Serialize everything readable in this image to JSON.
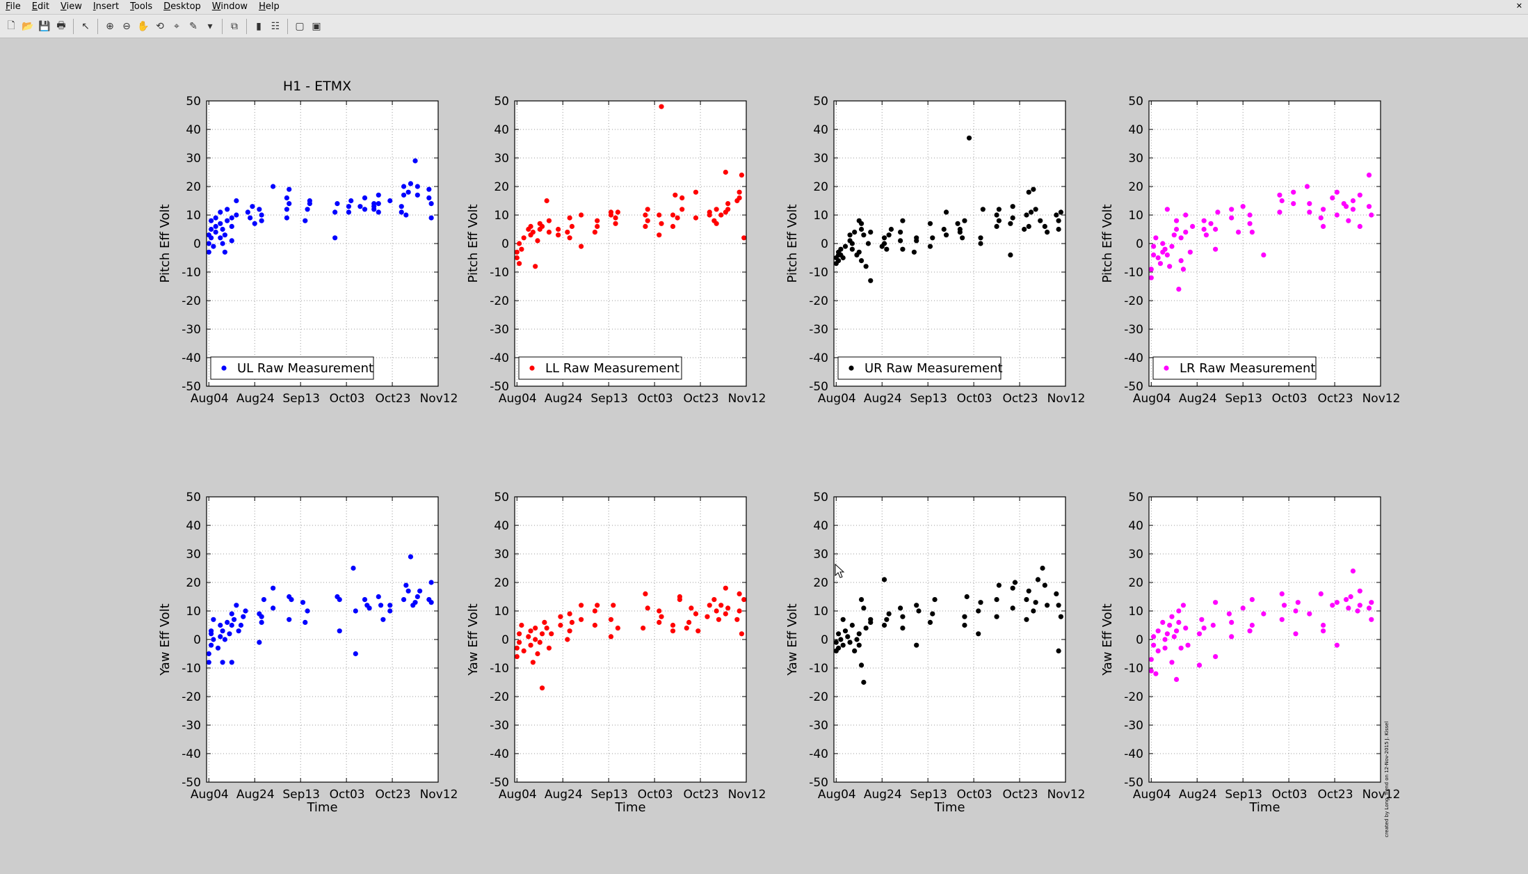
{
  "window": {
    "menu": [
      "File",
      "Edit",
      "View",
      "Insert",
      "Tools",
      "Desktop",
      "Window",
      "Help"
    ],
    "close_symbol": "✕",
    "toolbar": [
      {
        "name": "new-figure-icon",
        "glyph": "🗋"
      },
      {
        "name": "open-file-icon",
        "glyph": "📂"
      },
      {
        "name": "save-icon",
        "glyph": "💾"
      },
      {
        "name": "print-icon",
        "glyph": "🖶"
      },
      {
        "sep": true
      },
      {
        "name": "edit-plot-arrow-icon",
        "glyph": "↖"
      },
      {
        "sep": true
      },
      {
        "name": "zoom-in-icon",
        "glyph": "⊕"
      },
      {
        "name": "zoom-out-icon",
        "glyph": "⊖"
      },
      {
        "name": "pan-hand-icon",
        "glyph": "✋"
      },
      {
        "name": "rotate-3d-icon",
        "glyph": "⟲"
      },
      {
        "name": "data-cursor-icon",
        "glyph": "⌖"
      },
      {
        "name": "brush-icon",
        "glyph": "✎"
      },
      {
        "name": "brush-dropdown-icon",
        "glyph": "▾"
      },
      {
        "sep": true
      },
      {
        "name": "link-plot-icon",
        "glyph": "⧉"
      },
      {
        "sep": true
      },
      {
        "name": "insert-colorbar-icon",
        "glyph": "▮"
      },
      {
        "name": "insert-legend-icon",
        "glyph": "☷"
      },
      {
        "sep": true
      },
      {
        "name": "hide-plot-tools-icon",
        "glyph": "▢"
      },
      {
        "name": "show-plot-tools-icon",
        "glyph": "▣"
      }
    ]
  },
  "figure": {
    "title": "H1 - ETMX",
    "credit": "created by Long_Trend on 12-Nov-2015 J. Kissel",
    "x_ticks": [
      "Aug04",
      "Aug24",
      "Sep13",
      "Oct03",
      "Oct23",
      "Nov12"
    ],
    "y_ticks": [
      "50",
      "40",
      "30",
      "20",
      "10",
      "0",
      "-10",
      "-20",
      "-30",
      "-40",
      "-50"
    ],
    "x_label": "Time",
    "y_label_pitch": "Pitch Eff Volt",
    "y_label_yaw": "Yaw Eff Volt"
  },
  "chart_data": [
    {
      "type": "scatter",
      "row": "pitch",
      "ylabel": "Pitch Eff Volt",
      "color": "#0000ff",
      "legend": "UL Raw Measurement",
      "ylim": [
        -50,
        50
      ],
      "xlim": [
        -1,
        100
      ],
      "x": [
        0,
        0,
        0,
        1,
        1,
        1,
        2,
        3,
        3,
        3,
        5,
        5,
        5,
        6,
        6,
        7,
        7,
        8,
        8,
        10,
        10,
        10,
        12,
        12,
        17,
        18,
        19,
        20,
        22,
        23,
        23,
        28,
        34,
        34,
        34,
        35,
        35,
        42,
        43,
        44,
        44,
        55,
        55,
        56,
        61,
        61,
        62,
        66,
        68,
        68,
        72,
        72,
        72,
        74,
        74,
        74,
        79,
        84,
        84,
        85,
        85,
        86,
        87,
        88,
        90,
        91,
        91,
        96,
        96,
        97,
        97
      ],
      "y": [
        -3,
        0,
        3,
        5,
        8,
        2,
        -1,
        4,
        6,
        9,
        2,
        7,
        11,
        0,
        5,
        -3,
        3,
        8,
        12,
        9,
        1,
        6,
        15,
        10,
        11,
        9,
        13,
        7,
        12,
        10,
        8,
        20,
        16,
        12,
        9,
        19,
        14,
        8,
        12,
        15,
        14,
        11,
        2,
        14,
        13,
        11,
        15,
        13,
        12,
        16,
        14,
        13,
        12,
        14,
        11,
        17,
        15,
        13,
        11,
        20,
        17,
        10,
        18,
        21,
        29,
        20,
        17,
        16,
        19,
        9,
        14
      ]
    },
    {
      "type": "scatter",
      "row": "pitch",
      "ylabel": "Pitch Eff Volt",
      "color": "#ff0000",
      "legend": "LL Raw Measurement",
      "ylim": [
        -50,
        50
      ],
      "xlim": [
        -1,
        100
      ],
      "x": [
        0,
        0,
        1,
        1,
        2,
        3,
        5,
        6,
        6,
        7,
        8,
        9,
        10,
        10,
        11,
        13,
        14,
        14,
        18,
        18,
        22,
        23,
        23,
        24,
        28,
        28,
        34,
        35,
        35,
        41,
        41,
        43,
        43,
        44,
        56,
        56,
        57,
        57,
        62,
        62,
        63,
        63,
        68,
        68,
        69,
        70,
        72,
        72,
        78,
        78,
        84,
        84,
        86,
        87,
        87,
        89,
        91,
        91,
        92,
        92,
        96,
        97,
        97,
        98,
        99
      ],
      "y": [
        -5,
        -3,
        -7,
        0,
        -2,
        2,
        5,
        3,
        6,
        4,
        -8,
        1,
        7,
        5,
        6,
        15,
        8,
        4,
        3,
        5,
        4,
        9,
        2,
        6,
        -1,
        10,
        4,
        8,
        6,
        11,
        10,
        9,
        7,
        11,
        10,
        6,
        12,
        8,
        10,
        3,
        7,
        48,
        6,
        10,
        17,
        9,
        12,
        16,
        9,
        18,
        11,
        10,
        8,
        7,
        12,
        10,
        25,
        11,
        14,
        12,
        15,
        18,
        16,
        24,
        2
      ]
    },
    {
      "type": "scatter",
      "row": "pitch",
      "ylabel": "Pitch Eff Volt",
      "color": "#000000",
      "legend": "UR Raw Measurement",
      "ylim": [
        -50,
        50
      ],
      "xlim": [
        -1,
        100
      ],
      "x": [
        0,
        0,
        1,
        1,
        1,
        2,
        2,
        3,
        4,
        6,
        6,
        7,
        7,
        8,
        9,
        10,
        10,
        11,
        11,
        11,
        12,
        13,
        14,
        15,
        15,
        20,
        21,
        21,
        22,
        23,
        24,
        28,
        28,
        29,
        29,
        34,
        35,
        35,
        41,
        41,
        42,
        47,
        48,
        48,
        53,
        54,
        54,
        55,
        56,
        58,
        63,
        63,
        64,
        70,
        70,
        71,
        71,
        76,
        76,
        77,
        77,
        82,
        83,
        84,
        84,
        85,
        86,
        87,
        89,
        91,
        92,
        96,
        97,
        97,
        98
      ],
      "y": [
        -7,
        -5,
        -3,
        -6,
        -4,
        -4,
        -2,
        -5,
        -1,
        1,
        3,
        -2,
        0,
        4,
        -4,
        -3,
        8,
        7,
        5,
        -6,
        3,
        -8,
        0,
        4,
        -13,
        -1,
        0,
        2,
        -2,
        3,
        5,
        1,
        4,
        -2,
        8,
        -3,
        1,
        2,
        7,
        -1,
        2,
        5,
        3,
        11,
        7,
        4,
        5,
        2,
        8,
        37,
        2,
        0,
        12,
        6,
        10,
        12,
        8,
        7,
        -4,
        9,
        13,
        5,
        10,
        6,
        18,
        11,
        19,
        12,
        8,
        6,
        4,
        10,
        8,
        5,
        11
      ]
    },
    {
      "type": "scatter",
      "row": "pitch",
      "ylabel": "Pitch Eff Volt",
      "color": "#ff00ff",
      "legend": "LR Raw Measurement",
      "ylim": [
        -50,
        50
      ],
      "xlim": [
        -1,
        100
      ],
      "x": [
        0,
        0,
        1,
        1,
        2,
        3,
        4,
        5,
        5,
        6,
        7,
        7,
        8,
        9,
        10,
        11,
        11,
        12,
        13,
        13,
        14,
        15,
        15,
        17,
        18,
        23,
        23,
        24,
        26,
        28,
        28,
        29,
        35,
        35,
        38,
        40,
        43,
        43,
        44,
        49,
        56,
        56,
        57,
        62,
        62,
        68,
        69,
        69,
        74,
        75,
        75,
        79,
        81,
        81,
        84,
        85,
        86,
        88,
        88,
        91,
        91,
        95,
        95,
        96
      ],
      "y": [
        -12,
        -9,
        -4,
        -1,
        2,
        -5,
        -7,
        -3,
        0,
        -2,
        -4,
        12,
        -8,
        -1,
        3,
        5,
        8,
        -16,
        -6,
        2,
        -9,
        4,
        10,
        -3,
        6,
        5,
        8,
        3,
        7,
        5,
        -2,
        11,
        12,
        9,
        4,
        13,
        10,
        7,
        4,
        -4,
        17,
        11,
        15,
        14,
        18,
        20,
        14,
        11,
        9,
        6,
        12,
        16,
        18,
        10,
        14,
        13,
        8,
        12,
        15,
        6,
        17,
        13,
        24,
        10
      ]
    },
    {
      "type": "scatter",
      "row": "yaw",
      "ylabel": "Yaw Eff Volt",
      "color": "#0000ff",
      "ylim": [
        -50,
        50
      ],
      "xlim": [
        -1,
        100
      ],
      "x": [
        0,
        0,
        1,
        1,
        1,
        2,
        2,
        4,
        5,
        5,
        6,
        6,
        7,
        8,
        9,
        10,
        10,
        10,
        11,
        12,
        13,
        14,
        15,
        16,
        22,
        22,
        23,
        23,
        24,
        28,
        28,
        35,
        35,
        36,
        41,
        42,
        43,
        56,
        57,
        57,
        63,
        64,
        64,
        68,
        69,
        70,
        74,
        75,
        76,
        79,
        79,
        85,
        86,
        87,
        88,
        89,
        90,
        91,
        92,
        96,
        97,
        97
      ],
      "y": [
        -8,
        -5,
        2,
        3,
        -2,
        7,
        0,
        -3,
        1,
        5,
        3,
        -8,
        0,
        6,
        2,
        5,
        -8,
        9,
        7,
        12,
        3,
        5,
        8,
        10,
        -1,
        9,
        8,
        6,
        14,
        18,
        11,
        15,
        7,
        14,
        13,
        6,
        10,
        15,
        3,
        14,
        25,
        10,
        -5,
        14,
        12,
        11,
        15,
        12,
        7,
        10,
        12,
        14,
        19,
        17,
        29,
        12,
        13,
        15,
        17,
        14,
        20,
        13
      ]
    },
    {
      "type": "scatter",
      "row": "yaw",
      "ylabel": "Yaw Eff Volt",
      "color": "#ff0000",
      "ylim": [
        -50,
        50
      ],
      "xlim": [
        -1,
        100
      ],
      "x": [
        0,
        0,
        1,
        1,
        2,
        3,
        5,
        6,
        6,
        7,
        8,
        8,
        9,
        10,
        11,
        11,
        12,
        13,
        14,
        15,
        19,
        19,
        22,
        23,
        23,
        24,
        28,
        28,
        34,
        34,
        35,
        41,
        41,
        42,
        44,
        55,
        56,
        57,
        62,
        62,
        63,
        68,
        68,
        71,
        71,
        74,
        75,
        76,
        78,
        79,
        83,
        84,
        86,
        87,
        88,
        89,
        91,
        91,
        92,
        96,
        97,
        97,
        98,
        99
      ],
      "y": [
        -6,
        -3,
        -1,
        2,
        5,
        -4,
        1,
        -2,
        3,
        -8,
        0,
        4,
        -5,
        -1,
        2,
        -17,
        6,
        4,
        -3,
        2,
        5,
        8,
        0,
        3,
        9,
        6,
        12,
        7,
        5,
        10,
        12,
        1,
        7,
        12,
        4,
        4,
        16,
        11,
        10,
        6,
        8,
        3,
        5,
        15,
        14,
        4,
        6,
        11,
        9,
        3,
        8,
        12,
        14,
        10,
        7,
        12,
        9,
        18,
        11,
        7,
        16,
        10,
        2,
        14
      ]
    },
    {
      "type": "scatter",
      "row": "yaw",
      "ylabel": "Yaw Eff Volt",
      "color": "#000000",
      "ylim": [
        -50,
        50
      ],
      "xlim": [
        -1,
        100
      ],
      "x": [
        0,
        0,
        1,
        1,
        2,
        3,
        3,
        4,
        5,
        6,
        7,
        8,
        9,
        10,
        10,
        11,
        11,
        12,
        12,
        13,
        15,
        15,
        21,
        21,
        22,
        23,
        28,
        29,
        29,
        35,
        35,
        36,
        41,
        42,
        43,
        56,
        56,
        57,
        62,
        62,
        63,
        70,
        70,
        71,
        77,
        77,
        78,
        83,
        83,
        84,
        86,
        87,
        88,
        90,
        91,
        92,
        96,
        97,
        97,
        98
      ],
      "y": [
        -4,
        -1,
        2,
        -3,
        0,
        -2,
        7,
        3,
        1,
        -1,
        5,
        -4,
        0,
        -2,
        2,
        -9,
        14,
        11,
        -15,
        4,
        6,
        7,
        21,
        5,
        7,
        9,
        11,
        4,
        8,
        12,
        -2,
        10,
        6,
        9,
        14,
        8,
        5,
        15,
        10,
        2,
        13,
        8,
        14,
        19,
        11,
        18,
        20,
        7,
        14,
        17,
        10,
        13,
        21,
        25,
        19,
        12,
        16,
        12,
        -4,
        8
      ]
    },
    {
      "type": "scatter",
      "row": "yaw",
      "ylabel": "Yaw Eff Volt",
      "color": "#ff00ff",
      "ylim": [
        -50,
        50
      ],
      "xlim": [
        -1,
        100
      ],
      "x": [
        0,
        0,
        1,
        1,
        2,
        3,
        3,
        5,
        6,
        6,
        7,
        8,
        9,
        9,
        10,
        11,
        11,
        12,
        12,
        13,
        14,
        15,
        16,
        21,
        21,
        22,
        23,
        27,
        28,
        28,
        34,
        35,
        35,
        40,
        43,
        44,
        44,
        49,
        57,
        57,
        58,
        63,
        63,
        64,
        69,
        74,
        75,
        75,
        79,
        81,
        81,
        85,
        86,
        87,
        88,
        90,
        91,
        91,
        95,
        96,
        96
      ],
      "y": [
        -11,
        -7,
        -2,
        1,
        -12,
        3,
        -4,
        6,
        0,
        -3,
        2,
        5,
        -8,
        8,
        1,
        -14,
        3,
        10,
        6,
        -3,
        12,
        4,
        -2,
        -9,
        2,
        7,
        4,
        5,
        -6,
        13,
        9,
        1,
        6,
        11,
        3,
        14,
        5,
        9,
        7,
        16,
        12,
        10,
        2,
        13,
        9,
        16,
        3,
        5,
        12,
        13,
        -2,
        14,
        11,
        15,
        24,
        10,
        17,
        12,
        11,
        13,
        7
      ]
    }
  ]
}
